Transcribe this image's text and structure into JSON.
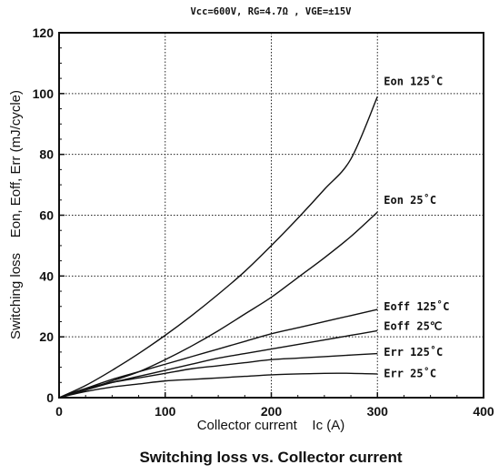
{
  "chart_data": {
    "type": "line",
    "subtitle": "Vcc=600V, RG=4.7Ω , VGE=±15V",
    "title": "Switching loss vs. Collector current",
    "xlabel": "Collector current    Ic (A)",
    "ylabel": "Switching loss    Eon, Eoff, Err (mJ/cycle)",
    "xlim": [
      0,
      400
    ],
    "ylim": [
      0,
      120
    ],
    "xticks": [
      "0",
      "100",
      "200",
      "300",
      "400"
    ],
    "yticks": [
      "0",
      "20",
      "40",
      "60",
      "80",
      "100",
      "120"
    ],
    "grid": true,
    "x": [
      0,
      25,
      50,
      75,
      100,
      125,
      150,
      175,
      200,
      225,
      250,
      275,
      300
    ],
    "series": [
      {
        "name": "Eon 125˚C",
        "values": [
          0,
          4,
          9,
          14.5,
          20.5,
          27,
          34,
          41.5,
          50,
          59,
          68.5,
          78.5,
          99
        ]
      },
      {
        "name": "Eon 25˚C",
        "values": [
          0,
          2.5,
          5.5,
          8.5,
          12.5,
          17,
          22,
          27.5,
          33,
          39.5,
          46,
          53,
          61
        ]
      },
      {
        "name": "Eoff 125˚C",
        "values": [
          0,
          3,
          6,
          8.5,
          11,
          13.5,
          16,
          18.5,
          21,
          23,
          25,
          27,
          29
        ]
      },
      {
        "name": "Eoff 25℃",
        "values": [
          0,
          2.5,
          5,
          7,
          9,
          11,
          13,
          14.5,
          16,
          17.5,
          19,
          20.5,
          22
        ]
      },
      {
        "name": "Err 125˚C",
        "values": [
          0,
          3,
          5,
          6.5,
          8,
          9.5,
          10.5,
          11.5,
          12.5,
          13,
          13.5,
          14,
          14.5
        ]
      },
      {
        "name": "Err 25˚C",
        "values": [
          0,
          2,
          3.5,
          4.5,
          5.5,
          6,
          6.5,
          7,
          7.5,
          7.8,
          8,
          8,
          7.8
        ]
      }
    ],
    "annotations": [
      {
        "text": "Eon 125˚C",
        "x": 300,
        "y": 104
      },
      {
        "text": "Eon 25˚C",
        "x": 300,
        "y": 65
      },
      {
        "text": "Eoff 125˚C",
        "x": 300,
        "y": 30
      },
      {
        "text": "Eoff 25℃",
        "x": 300,
        "y": 23.5
      },
      {
        "text": "Err 125˚C",
        "x": 300,
        "y": 15
      },
      {
        "text": "Err 25˚C",
        "x": 300,
        "y": 8
      }
    ],
    "colors": {
      "line": "#111111",
      "grid": "#222222",
      "background": "#ffffff"
    }
  }
}
